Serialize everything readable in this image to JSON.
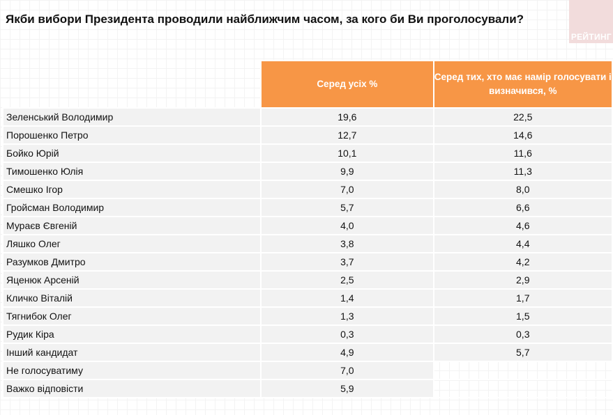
{
  "title": "Якби вибори Президента проводили найближчим часом, за кого би Ви проголосували?",
  "logo_text": "РЕЙТИНГ",
  "colors": {
    "header": "#f79646",
    "row": "#f2f2f2"
  },
  "table": {
    "columns": [
      "Серед усіх %",
      "Серед тих, хто має намір голосувати і визначився, %"
    ],
    "rows": [
      {
        "name": "Зеленський Володимир",
        "all": "19,6",
        "decided": "22,5"
      },
      {
        "name": "Порошенко Петро",
        "all": "12,7",
        "decided": "14,6"
      },
      {
        "name": "Бойко Юрій",
        "all": "10,1",
        "decided": "11,6"
      },
      {
        "name": "Тимошенко Юлія",
        "all": "9,9",
        "decided": "11,3"
      },
      {
        "name": "Смешко Ігор",
        "all": "7,0",
        "decided": "8,0"
      },
      {
        "name": "Гройсман Володимир",
        "all": "5,7",
        "decided": "6,6"
      },
      {
        "name": "Мураєв Євгеній",
        "all": "4,0",
        "decided": "4,6"
      },
      {
        "name": "Ляшко Олег",
        "all": "3,8",
        "decided": "4,4"
      },
      {
        "name": "Разумков Дмитро",
        "all": "3,7",
        "decided": "4,2"
      },
      {
        "name": "Яценюк  Арсеній",
        "all": "2,5",
        "decided": "2,9"
      },
      {
        "name": "Кличко Віталій",
        "all": "1,4",
        "decided": "1,7"
      },
      {
        "name": "Тягнибок Олег",
        "all": "1,3",
        "decided": "1,5"
      },
      {
        "name": "Рудик Кіра",
        "all": "0,3",
        "decided": "0,3"
      },
      {
        "name": "Інший кандидат",
        "all": "4,9",
        "decided": "5,7"
      },
      {
        "name": "Не голосуватиму",
        "all": "7,0",
        "decided": null
      },
      {
        "name": "Важко відповісти",
        "all": "5,9",
        "decided": null
      }
    ]
  }
}
